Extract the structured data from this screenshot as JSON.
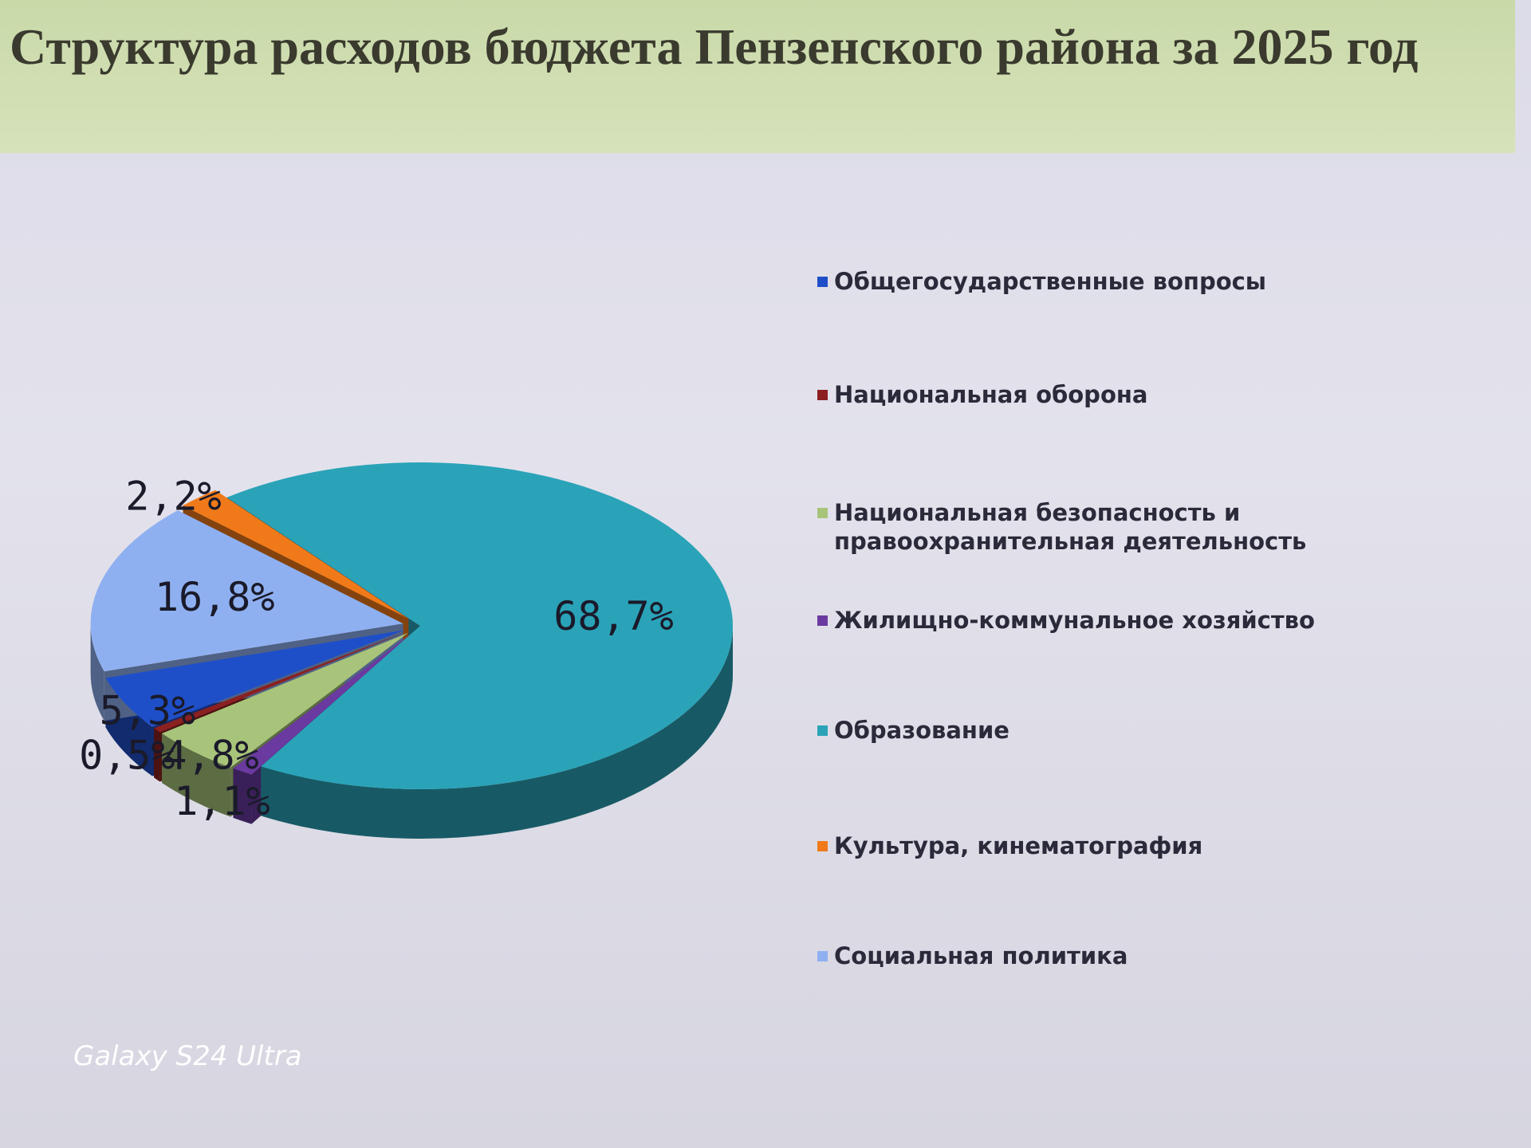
{
  "chart_data": {
    "type": "pie3d",
    "title": "Структура расходов бюджета Пензенского района за 2025 год",
    "categories": [
      "Общегосударственные вопросы",
      "Национальная оборона",
      "Национальная безопасность и правоохранительная деятельность",
      "Жилищно-коммунальное хозяйство",
      "Образование",
      "Культура, кинематография",
      "Социальная политика"
    ],
    "values": [
      5.3,
      0.5,
      4.8,
      1.1,
      68.7,
      2.2,
      16.8
    ],
    "value_labels": [
      "5,3%",
      "0,5%",
      "4,8%",
      "1,1%",
      "68,7%",
      "2,2%",
      "16,8%"
    ],
    "colors": [
      "#1f4fc8",
      "#8b2020",
      "#a8c47a",
      "#6a3aa0",
      "#2aa3b8",
      "#f07a1a",
      "#8fb0f0"
    ],
    "legend": "right"
  },
  "watermark": "Galaxy S24 Ultra"
}
